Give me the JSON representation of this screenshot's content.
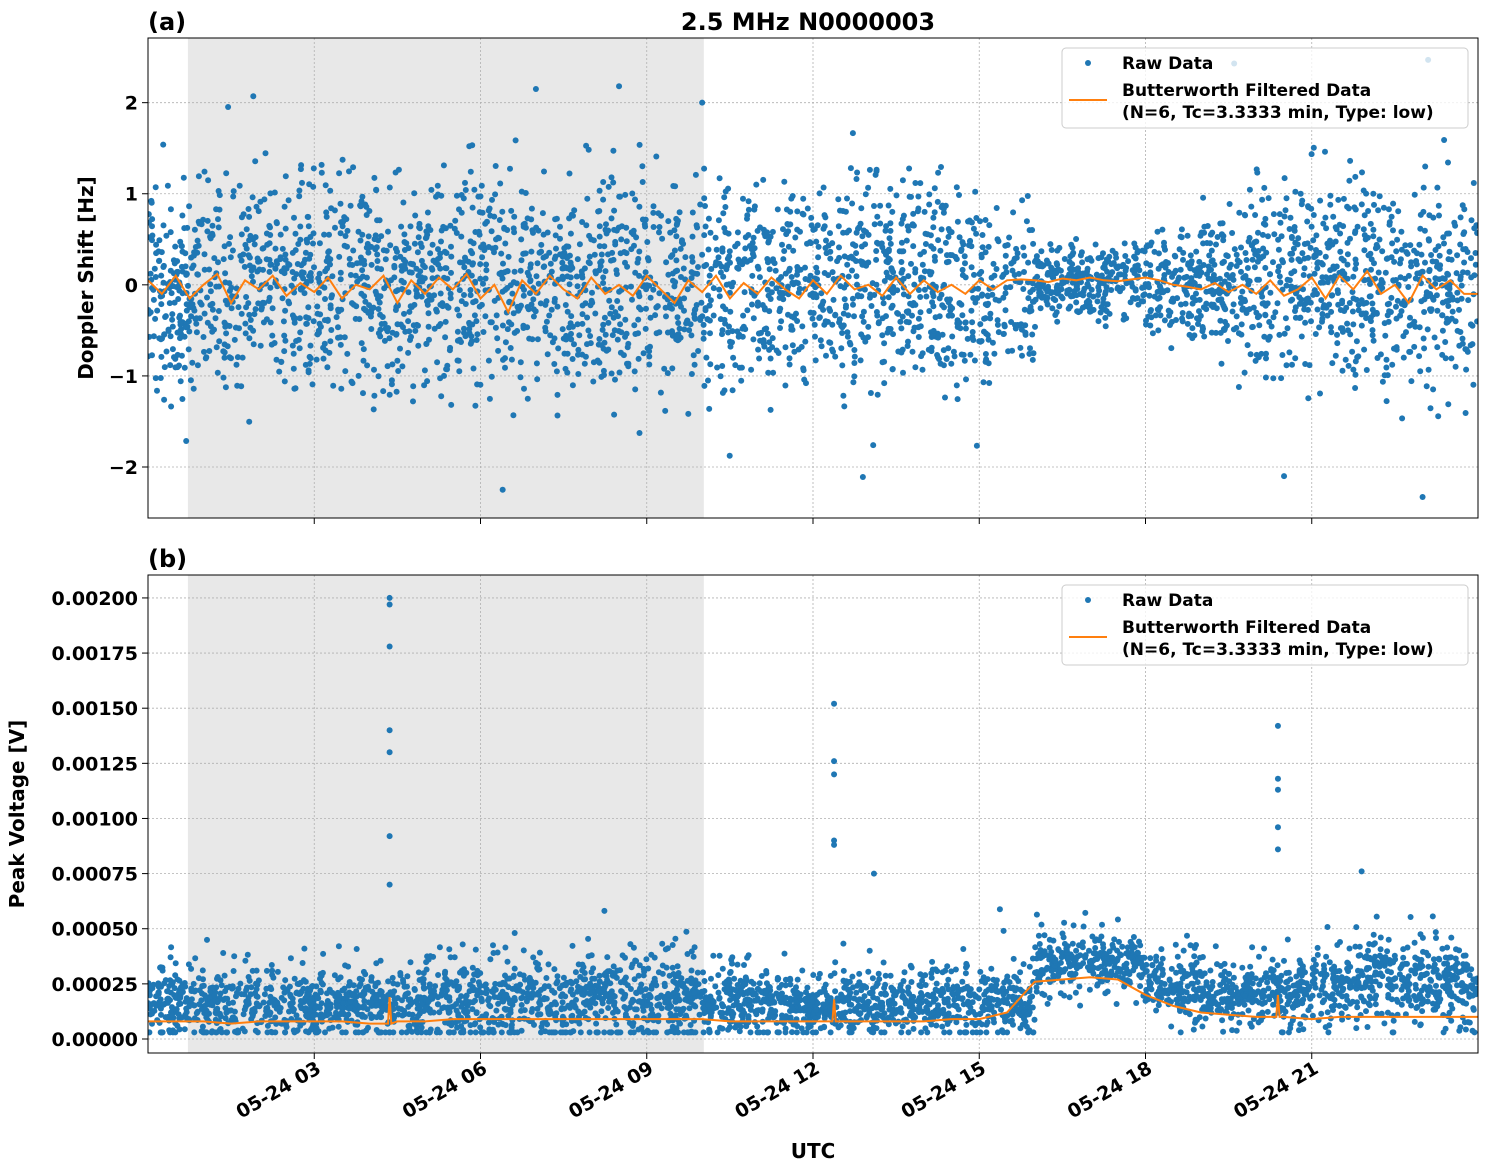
{
  "title": "2.5 MHz N0000003",
  "xlabel": "UTC",
  "chart_data": [
    {
      "type": "scatter+line",
      "panel_label": "(a)",
      "ylabel": "Doppler Shift [Hz]",
      "xlim_hours": [
        0,
        24
      ],
      "ylim": [
        -2.56,
        2.71
      ],
      "yticks": [
        2,
        1,
        0,
        -1,
        -2
      ],
      "ytick_labels": [
        "2",
        "1",
        "0",
        "−1",
        "−2"
      ],
      "grid": true,
      "legend": "top-right",
      "shaded_hours": [
        0.72,
        10.03
      ],
      "series": [
        {
          "name": "Raw Data",
          "type": "scatter",
          "color": "#1f77b4",
          "hourly_center": [
            0,
            0,
            0,
            0,
            0,
            0,
            0,
            0,
            0,
            0,
            0,
            0,
            0,
            0,
            0,
            0,
            0.02,
            0.02,
            0,
            0,
            0,
            0,
            0,
            0
          ],
          "hourly_spread": [
            0.55,
            0.55,
            0.55,
            0.55,
            0.55,
            0.55,
            0.55,
            0.55,
            0.55,
            0.55,
            0.55,
            0.55,
            0.55,
            0.55,
            0.55,
            0.45,
            0.2,
            0.22,
            0.3,
            0.4,
            0.5,
            0.55,
            0.55,
            0.55
          ],
          "outliers": [
            [
              1.9,
              2.07
            ],
            [
              8.5,
              2.18
            ],
            [
              7,
              2.15
            ],
            [
              10,
              2.0
            ],
            [
              23.1,
              2.47
            ],
            [
              19.6,
              2.43
            ],
            [
              6.4,
              -2.25
            ],
            [
              23.0,
              -2.33
            ],
            [
              12.9,
              -2.11
            ],
            [
              20.5,
              -2.1
            ]
          ]
        },
        {
          "name": "Butterworth Filtered Data\n(N=6, Tc=3.3333 min, Type: low)",
          "type": "line",
          "color": "#ff7f0e",
          "step_minutes": 15,
          "values": [
            0.05,
            -0.1,
            0.1,
            -0.15,
            0.0,
            0.12,
            -0.2,
            0.05,
            -0.05,
            0.1,
            -0.12,
            0.02,
            -0.08,
            0.08,
            -0.15,
            0.0,
            -0.05,
            0.1,
            -0.2,
            0.05,
            -0.1,
            0.08,
            -0.05,
            0.12,
            -0.15,
            0.0,
            -0.3,
            0.05,
            -0.1,
            0.1,
            -0.05,
            -0.15,
            0.08,
            -0.1,
            0.0,
            -0.12,
            0.1,
            -0.05,
            -0.2,
            0.05,
            -0.08,
            0.1,
            -0.15,
            0.02,
            -0.1,
            0.08,
            -0.05,
            -0.15,
            0.05,
            -0.1,
            0.1,
            -0.05,
            0.0,
            -0.12,
            0.08,
            -0.1,
            0.05,
            -0.08,
            0.0,
            -0.1,
            0.05,
            -0.05,
            0.05,
            0.06,
            0.05,
            0.03,
            0.07,
            0.05,
            0.08,
            0.05,
            0.04,
            0.06,
            0.08,
            0.05,
            0.0,
            -0.02,
            -0.05,
            0.02,
            -0.08,
            0.0,
            -0.1,
            0.05,
            -0.12,
            -0.05,
            0.08,
            -0.15,
            0.1,
            -0.05,
            0.15,
            -0.1,
            0.0,
            -0.2,
            0.1,
            -0.05,
            0.05,
            -0.1
          ]
        }
      ],
      "legend_labels": [
        "Raw Data",
        "Butterworth Filtered Data",
        "(N=6, Tc=3.3333 min, Type: low)"
      ]
    },
    {
      "type": "scatter+line",
      "panel_label": "(b)",
      "ylabel": "Peak Voltage [V]",
      "xlim_hours": [
        0,
        24
      ],
      "ylim": [
        -6.35e-05,
        0.002104
      ],
      "yticks": [
        0.002,
        0.00175,
        0.0015,
        0.00125,
        0.001,
        0.00075,
        0.0005,
        0.00025,
        0
      ],
      "ytick_labels": [
        "0.00200",
        "0.00175",
        "0.00150",
        "0.00125",
        "0.00100",
        "0.00075",
        "0.00050",
        "0.00025",
        "0.00000"
      ],
      "grid": true,
      "legend": "top-right",
      "shaded_hours": [
        0.72,
        10.03
      ],
      "series": [
        {
          "name": "Raw Data",
          "type": "scatter",
          "color": "#1f77b4",
          "hourly_center": [
            0.00016,
            0.00016,
            0.00016,
            0.00016,
            0.00017,
            0.00018,
            0.00018,
            0.00018,
            0.00018,
            0.00018,
            0.00017,
            0.00016,
            0.00016,
            0.00016,
            0.00016,
            0.00018,
            0.00035,
            0.00034,
            0.00024,
            0.0002,
            0.0002,
            0.00025,
            0.00026,
            0.00025
          ],
          "hourly_spread": [
            0.00012,
            0.00012,
            0.00012,
            0.00012,
            0.00013,
            0.00014,
            0.00014,
            0.00014,
            0.00014,
            0.00013,
            0.00012,
            0.00011,
            0.00011,
            0.00011,
            0.00011,
            0.00012,
            0.0001,
            0.0001,
            0.00011,
            0.0001,
            0.00011,
            0.00013,
            0.00013,
            0.00013
          ],
          "outliers": [
            [
              4.36,
              0.002
            ],
            [
              4.36,
              0.00197
            ],
            [
              4.36,
              0.00178
            ],
            [
              4.36,
              0.0014
            ],
            [
              4.36,
              0.0013
            ],
            [
              4.36,
              0.00092
            ],
            [
              4.36,
              0.0007
            ],
            [
              12.38,
              0.00152
            ],
            [
              12.38,
              0.00126
            ],
            [
              12.38,
              0.0012
            ],
            [
              12.38,
              0.0009
            ],
            [
              12.38,
              0.00088
            ],
            [
              20.39,
              0.00142
            ],
            [
              20.39,
              0.00118
            ],
            [
              20.39,
              0.00113
            ],
            [
              20.39,
              0.00096
            ],
            [
              20.39,
              0.00086
            ],
            [
              13.1,
              0.00075
            ],
            [
              21.9,
              0.00076
            ]
          ]
        },
        {
          "name": "Butterworth Filtered Data\n(N=6, Tc=3.3333 min, Type: low)",
          "type": "line",
          "color": "#ff7f0e",
          "step_minutes": 30,
          "values": [
            8e-05,
            8e-05,
            8e-05,
            7e-05,
            8e-05,
            8e-05,
            8e-05,
            8e-05,
            7e-05,
            8e-05,
            8e-05,
            9e-05,
            9e-05,
            9e-05,
            9e-05,
            9e-05,
            9e-05,
            9e-05,
            9e-05,
            9e-05,
            9e-05,
            8e-05,
            8e-05,
            8e-05,
            8e-05,
            8e-05,
            8e-05,
            8e-05,
            8e-05,
            9e-05,
            9e-05,
            0.00012,
            0.00026,
            0.00027,
            0.00028,
            0.00027,
            0.0002,
            0.00015,
            0.00012,
            0.00011,
            0.0001,
            0.0001,
            9e-05,
            0.0001,
            0.0001,
            0.0001,
            0.0001,
            0.0001
          ],
          "spikes": [
            [
              4.36,
              0.00019
            ],
            [
              12.38,
              0.00018
            ],
            [
              20.39,
              0.0002
            ]
          ]
        }
      ],
      "legend_labels": [
        "Raw Data",
        "Butterworth Filtered Data",
        "(N=6, Tc=3.3333 min, Type: low)"
      ]
    }
  ],
  "xtick_hours": [
    3,
    6,
    9,
    12,
    15,
    18,
    21
  ],
  "xtick_labels": [
    "05-24 03",
    "05-24 06",
    "05-24 09",
    "05-24 12",
    "05-24 15",
    "05-24 18",
    "05-24 21"
  ]
}
